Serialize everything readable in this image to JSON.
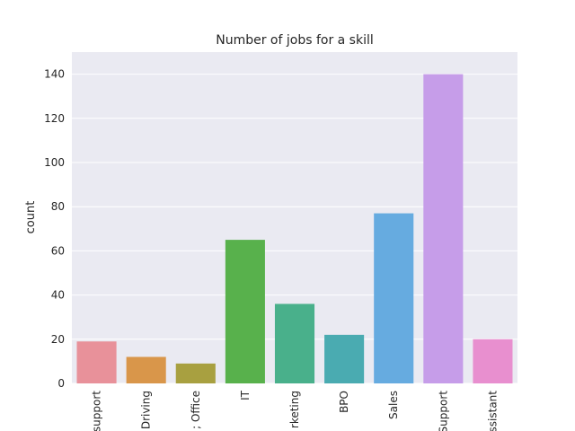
{
  "chart_data": {
    "type": "bar",
    "title": "Number of jobs for a skill",
    "xlabel": "",
    "ylabel": "count",
    "categories": [
      "support",
      "Driving",
      "Office",
      "IT",
      "Marketing",
      "BPO",
      "Sales",
      "Support",
      "Assistant"
    ],
    "category_labels_visible": [
      "support",
      "Driving",
      "; Office",
      "IT",
      "rketing",
      "BPO",
      "Sales",
      "Support",
      "ssistant"
    ],
    "values": [
      19,
      12,
      9,
      65,
      36,
      22,
      77,
      140,
      20
    ],
    "colors": [
      "#e8919a",
      "#d9964a",
      "#a8a040",
      "#58b14c",
      "#49b08b",
      "#4aabb1",
      "#66abe0",
      "#c69de9",
      "#e88fcf"
    ],
    "ylim": [
      0,
      150
    ],
    "yticks": [
      0,
      20,
      40,
      60,
      80,
      100,
      120,
      140
    ],
    "grid": true,
    "legend": "none",
    "style": {
      "plot_background": "#eaeaf2",
      "grid_color": "#ffffff",
      "text_color": "#262626"
    }
  }
}
